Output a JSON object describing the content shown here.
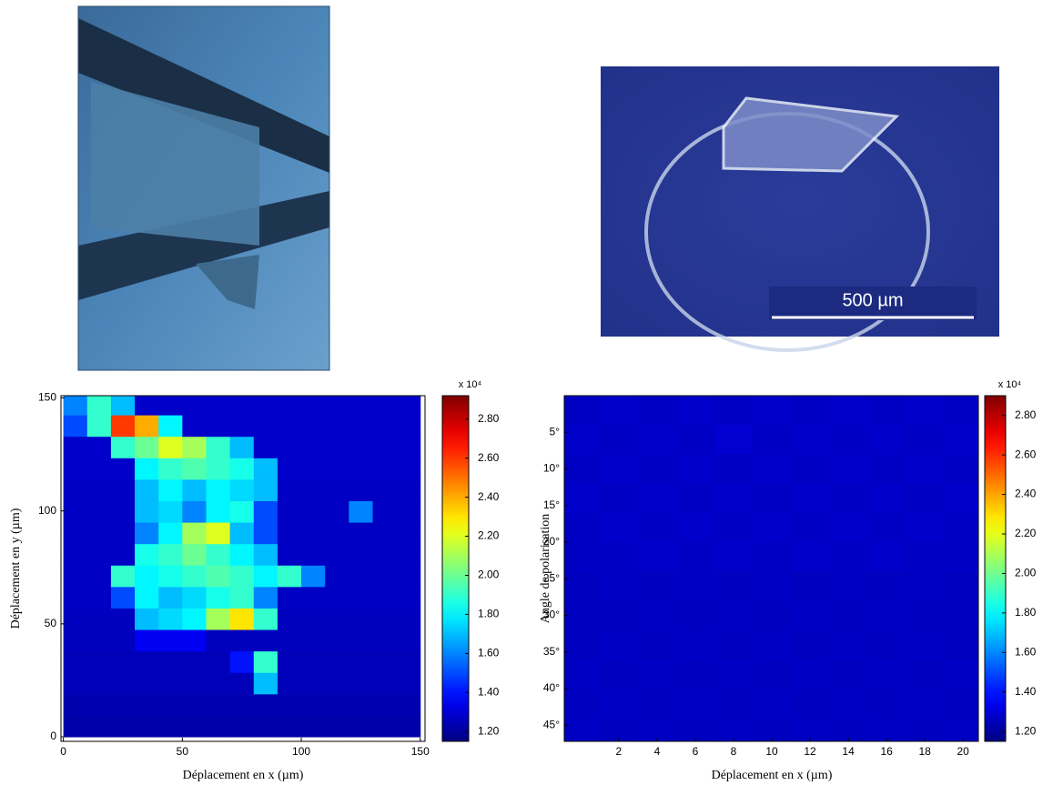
{
  "photo": {
    "scale_bar": "500 µm"
  },
  "chart_data": [
    {
      "type": "heatmap",
      "colormap": "jet",
      "xlabel": "Déplacement en x (µm)",
      "ylabel": "Déplacement en y (µm)",
      "xlim": [
        -1,
        152
      ],
      "ylim": [
        -2,
        151
      ],
      "xticks": [
        0,
        50,
        100,
        150
      ],
      "yticks": [
        0,
        50,
        100,
        150
      ],
      "xbins": [
        0,
        10,
        20,
        30,
        40,
        50,
        60,
        70,
        80,
        90,
        100,
        110,
        120,
        130,
        140,
        150
      ],
      "ybins": [
        0,
        9.5,
        19,
        28.5,
        38,
        47.5,
        57,
        66.5,
        76,
        85.5,
        95,
        104.5,
        114,
        123.5,
        133,
        142.5,
        152
      ],
      "values": [
        [
          1.22,
          1.22,
          1.22,
          1.22,
          1.22,
          1.22,
          1.22,
          1.22,
          1.22,
          1.22,
          1.22,
          1.22,
          1.22,
          1.22,
          1.22
        ],
        [
          1.23,
          1.23,
          1.23,
          1.23,
          1.23,
          1.23,
          1.23,
          1.23,
          1.23,
          1.23,
          1.23,
          1.23,
          1.23,
          1.23,
          1.23
        ],
        [
          1.25,
          1.25,
          1.25,
          1.25,
          1.25,
          1.25,
          1.25,
          1.25,
          1.7,
          1.25,
          1.25,
          1.25,
          1.25,
          1.25,
          1.25
        ],
        [
          1.25,
          1.25,
          1.25,
          1.25,
          1.25,
          1.25,
          1.25,
          1.4,
          1.9,
          1.25,
          1.25,
          1.25,
          1.25,
          1.25,
          1.25
        ],
        [
          1.26,
          1.26,
          1.26,
          1.35,
          1.35,
          1.35,
          1.26,
          1.26,
          1.26,
          1.26,
          1.26,
          1.26,
          1.26,
          1.26,
          1.26
        ],
        [
          1.26,
          1.26,
          1.26,
          1.7,
          1.75,
          1.8,
          2.1,
          2.3,
          1.9,
          1.26,
          1.26,
          1.26,
          1.26,
          1.26,
          1.26
        ],
        [
          1.27,
          1.27,
          1.5,
          1.8,
          1.7,
          1.75,
          1.85,
          1.9,
          1.6,
          1.27,
          1.27,
          1.27,
          1.27,
          1.27,
          1.27
        ],
        [
          1.27,
          1.27,
          1.9,
          1.8,
          1.85,
          1.9,
          1.95,
          1.9,
          1.8,
          1.9,
          1.6,
          1.27,
          1.27,
          1.27,
          1.27
        ],
        [
          1.27,
          1.27,
          1.27,
          1.85,
          1.9,
          2.0,
          1.9,
          1.8,
          1.7,
          1.27,
          1.27,
          1.27,
          1.27,
          1.27,
          1.27
        ],
        [
          1.27,
          1.27,
          1.27,
          1.6,
          1.8,
          2.1,
          2.2,
          1.7,
          1.5,
          1.27,
          1.27,
          1.27,
          1.27,
          1.27,
          1.27
        ],
        [
          1.27,
          1.27,
          1.27,
          1.7,
          1.75,
          1.6,
          1.8,
          1.85,
          1.5,
          1.27,
          1.27,
          1.27,
          1.6,
          1.27,
          1.27
        ],
        [
          1.27,
          1.27,
          1.27,
          1.7,
          1.8,
          1.7,
          1.8,
          1.75,
          1.7,
          1.27,
          1.27,
          1.27,
          1.27,
          1.27,
          1.27
        ],
        [
          1.28,
          1.28,
          1.28,
          1.8,
          1.9,
          1.95,
          1.9,
          1.85,
          1.7,
          1.28,
          1.28,
          1.28,
          1.28,
          1.28,
          1.28
        ],
        [
          1.28,
          1.28,
          1.9,
          2.0,
          2.2,
          2.1,
          1.9,
          1.7,
          1.28,
          1.28,
          1.28,
          1.28,
          1.28,
          1.28,
          1.28
        ],
        [
          1.5,
          1.9,
          2.6,
          2.4,
          1.8,
          1.28,
          1.28,
          1.28,
          1.28,
          1.28,
          1.28,
          1.28,
          1.28,
          1.28,
          1.28
        ],
        [
          1.6,
          1.9,
          1.7,
          1.28,
          1.28,
          1.28,
          1.28,
          1.28,
          1.28,
          1.28,
          1.28,
          1.28,
          1.28,
          1.28,
          1.28
        ]
      ],
      "clim": [
        1.15,
        2.92
      ],
      "cbar_label": "x 10⁴",
      "cbar_ticks": [
        {
          "value": 1.2,
          "label": "1.20"
        },
        {
          "value": 1.4,
          "label": "1.40"
        },
        {
          "value": 1.6,
          "label": "1.60"
        },
        {
          "value": 1.8,
          "label": "1.80"
        },
        {
          "value": 2,
          "label": "2.00"
        },
        {
          "value": 2.2,
          "label": "2.20"
        },
        {
          "value": 2.4,
          "label": "2.40"
        },
        {
          "value": 2.6,
          "label": "2.60"
        },
        {
          "value": 2.8,
          "label": "2.80"
        }
      ]
    },
    {
      "type": "heatmap",
      "colormap": "jet",
      "xlabel": "Déplacement en x (µm)",
      "ylabel": "Angle de polarisation",
      "xlim": [
        -0.85,
        20.8
      ],
      "ylim": [
        0,
        47.2
      ],
      "y_inverted": true,
      "xticks": [
        2,
        4,
        6,
        8,
        10,
        12,
        14,
        16,
        18,
        20
      ],
      "yticks": [
        {
          "value": 5,
          "label": "5°"
        },
        {
          "value": 10,
          "label": "10°"
        },
        {
          "value": 15,
          "label": "15°"
        },
        {
          "value": 20,
          "label": "20°"
        },
        {
          "value": 25,
          "label": "25°"
        },
        {
          "value": 30,
          "label": "30°"
        },
        {
          "value": 35,
          "label": "35°"
        },
        {
          "value": 40,
          "label": "40°"
        },
        {
          "value": 45,
          "label": "45°"
        }
      ],
      "xbins": [
        -1,
        1,
        3,
        5,
        7,
        9,
        11,
        13,
        15,
        17,
        19,
        21
      ],
      "ybins": [
        0,
        4,
        8,
        12,
        16,
        20,
        24,
        28,
        32,
        36,
        40,
        44,
        48
      ],
      "values": [
        [
          1.27,
          1.28,
          1.27,
          1.28,
          1.27,
          1.28,
          1.27,
          1.28,
          1.27,
          1.28,
          1.27
        ],
        [
          1.28,
          1.27,
          1.28,
          1.27,
          1.29,
          1.27,
          1.28,
          1.27,
          1.28,
          1.27,
          1.28
        ],
        [
          1.27,
          1.28,
          1.27,
          1.28,
          1.27,
          1.28,
          1.27,
          1.28,
          1.27,
          1.28,
          1.27
        ],
        [
          1.28,
          1.27,
          1.28,
          1.27,
          1.28,
          1.27,
          1.28,
          1.27,
          1.28,
          1.27,
          1.28
        ],
        [
          1.27,
          1.28,
          1.27,
          1.28,
          1.27,
          1.28,
          1.27,
          1.28,
          1.27,
          1.28,
          1.27
        ],
        [
          1.27,
          1.27,
          1.28,
          1.27,
          1.28,
          1.27,
          1.28,
          1.27,
          1.28,
          1.27,
          1.27
        ],
        [
          1.26,
          1.27,
          1.26,
          1.27,
          1.26,
          1.27,
          1.26,
          1.27,
          1.26,
          1.27,
          1.26
        ],
        [
          1.26,
          1.26,
          1.27,
          1.26,
          1.27,
          1.26,
          1.27,
          1.26,
          1.27,
          1.26,
          1.26
        ],
        [
          1.26,
          1.27,
          1.26,
          1.27,
          1.26,
          1.27,
          1.26,
          1.27,
          1.26,
          1.27,
          1.26
        ],
        [
          1.27,
          1.26,
          1.27,
          1.26,
          1.27,
          1.26,
          1.27,
          1.26,
          1.27,
          1.26,
          1.27
        ],
        [
          1.26,
          1.27,
          1.26,
          1.27,
          1.26,
          1.27,
          1.26,
          1.27,
          1.26,
          1.27,
          1.26
        ],
        [
          1.27,
          1.26,
          1.27,
          1.26,
          1.27,
          1.26,
          1.27,
          1.26,
          1.27,
          1.26,
          1.27
        ]
      ],
      "clim": [
        1.15,
        2.9
      ],
      "cbar_label": "x 10⁴",
      "cbar_ticks": [
        {
          "value": 1.2,
          "label": "1.20"
        },
        {
          "value": 1.4,
          "label": "1.40"
        },
        {
          "value": 1.6,
          "label": "1.60"
        },
        {
          "value": 1.8,
          "label": "1.80"
        },
        {
          "value": 2,
          "label": "2.00"
        },
        {
          "value": 2.2,
          "label": "2.20"
        },
        {
          "value": 2.4,
          "label": "2.40"
        },
        {
          "value": 2.6,
          "label": "2.60"
        },
        {
          "value": 2.8,
          "label": "2.80"
        }
      ]
    }
  ]
}
